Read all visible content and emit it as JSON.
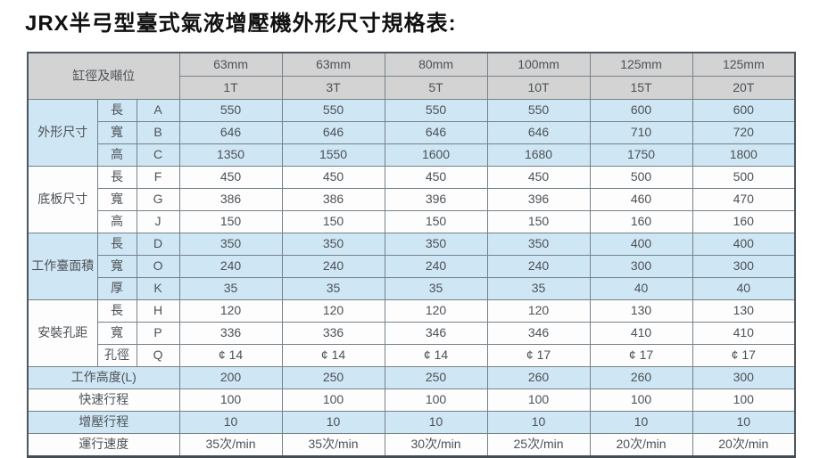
{
  "title": "JRX半弓型臺式氣液增壓機外形尺寸規格表:",
  "colors": {
    "header_bg": "#d3d3d3",
    "blue_row_bg": "#cfe6f4",
    "white_row_bg": "#fdfdfd",
    "grid_line": "#76828b",
    "outer_border": "#4d565e",
    "text": "#4d5257",
    "title_text": "#111111"
  },
  "table": {
    "corner_label": "缸徑及噸位",
    "columns": [
      {
        "diameter": "63mm",
        "tonnage": "1T"
      },
      {
        "diameter": "63mm",
        "tonnage": "3T"
      },
      {
        "diameter": "80mm",
        "tonnage": "5T"
      },
      {
        "diameter": "100mm",
        "tonnage": "10T"
      },
      {
        "diameter": "125mm",
        "tonnage": "15T"
      },
      {
        "diameter": "125mm",
        "tonnage": "20T"
      }
    ],
    "groups": [
      {
        "label": "外形尺寸",
        "tint": "blue",
        "rows": [
          {
            "dim": "長",
            "code": "A",
            "values": [
              "550",
              "550",
              "550",
              "550",
              "600",
              "600"
            ]
          },
          {
            "dim": "寬",
            "code": "B",
            "values": [
              "646",
              "646",
              "646",
              "646",
              "710",
              "720"
            ]
          },
          {
            "dim": "高",
            "code": "C",
            "values": [
              "1350",
              "1550",
              "1600",
              "1680",
              "1750",
              "1800"
            ]
          }
        ]
      },
      {
        "label": "底板尺寸",
        "tint": "white",
        "rows": [
          {
            "dim": "長",
            "code": "F",
            "values": [
              "450",
              "450",
              "450",
              "450",
              "500",
              "500"
            ]
          },
          {
            "dim": "寬",
            "code": "G",
            "values": [
              "386",
              "386",
              "396",
              "396",
              "460",
              "470"
            ]
          },
          {
            "dim": "高",
            "code": "J",
            "values": [
              "150",
              "150",
              "150",
              "150",
              "160",
              "160"
            ]
          }
        ]
      },
      {
        "label": "工作臺面積",
        "tint": "blue",
        "rows": [
          {
            "dim": "長",
            "code": "D",
            "values": [
              "350",
              "350",
              "350",
              "350",
              "400",
              "400"
            ]
          },
          {
            "dim": "寬",
            "code": "O",
            "values": [
              "240",
              "240",
              "240",
              "240",
              "300",
              "300"
            ]
          },
          {
            "dim": "厚",
            "code": "K",
            "values": [
              "35",
              "35",
              "35",
              "35",
              "40",
              "40"
            ]
          }
        ]
      },
      {
        "label": "安裝孔距",
        "tint": "white",
        "rows": [
          {
            "dim": "長",
            "code": "H",
            "values": [
              "120",
              "120",
              "120",
              "120",
              "130",
              "130"
            ]
          },
          {
            "dim": "寬",
            "code": "P",
            "values": [
              "336",
              "336",
              "346",
              "346",
              "410",
              "410"
            ]
          },
          {
            "dim": "孔徑",
            "code": "Q",
            "values": [
              "¢ 14",
              "¢ 14",
              "¢ 14",
              "¢ 17",
              "¢ 17",
              "¢ 17"
            ]
          }
        ]
      }
    ],
    "footer_rows": [
      {
        "label": "工作高度(L)",
        "tint": "blue",
        "values": [
          "200",
          "250",
          "250",
          "260",
          "260",
          "300"
        ]
      },
      {
        "label": "快速行程",
        "tint": "white",
        "values": [
          "100",
          "100",
          "100",
          "100",
          "100",
          "100"
        ]
      },
      {
        "label": "增壓行程",
        "tint": "blue",
        "values": [
          "10",
          "10",
          "10",
          "10",
          "10",
          "10"
        ]
      },
      {
        "label": "運行速度",
        "tint": "white",
        "values": [
          "35次/min",
          "35次/min",
          "30次/min",
          "25次/min",
          "20次/min",
          "20次/min"
        ]
      }
    ]
  }
}
